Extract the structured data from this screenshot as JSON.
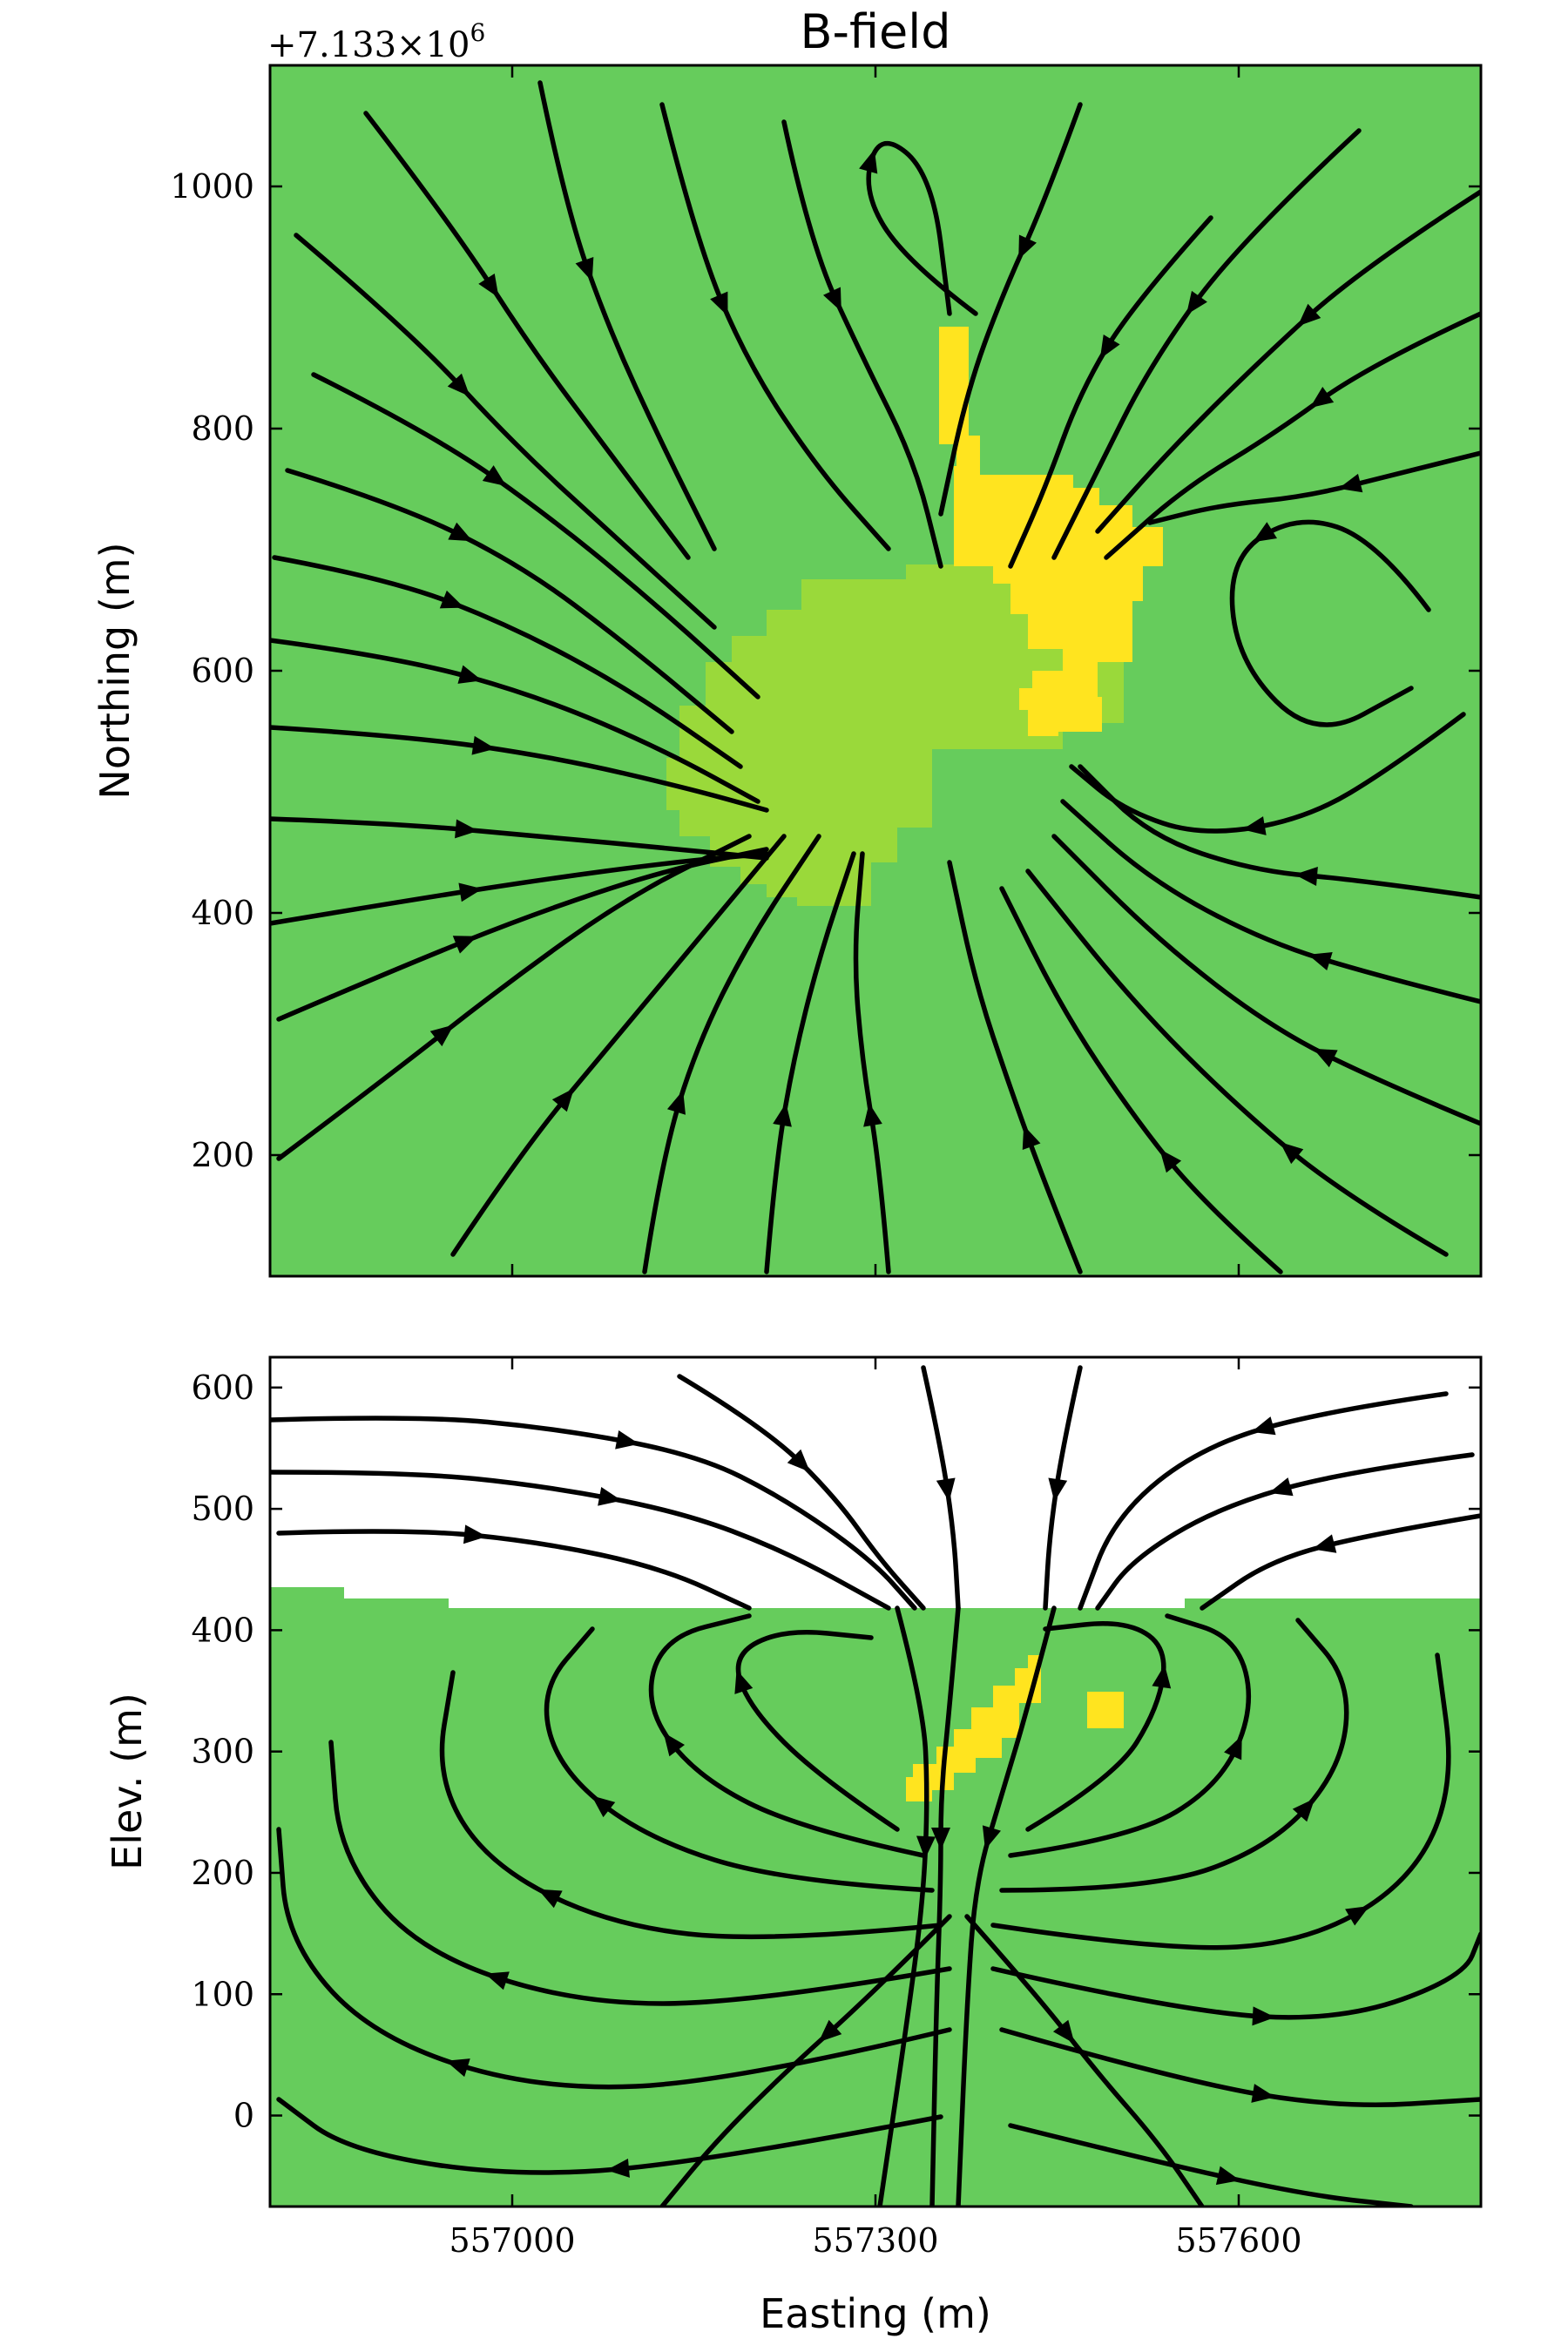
{
  "figure": {
    "title": "B-field",
    "offset_text": "+7.133×10",
    "offset_exponent": "6",
    "colors": {
      "background_model": "#66cc5c",
      "mid_anomaly": "#9ad93a",
      "high_anomaly": "#ffe41f",
      "air": "#ffffff",
      "streamlines": "#000000"
    }
  },
  "chart_data": [
    {
      "type": "streamplot",
      "view": "plan",
      "title": "B-field",
      "xlabel": "",
      "ylabel": "Northing (m)",
      "xlim": [
        556800,
        557800
      ],
      "ylim": [
        100,
        1100
      ],
      "y_offset": "+7.133×10^6",
      "yticks": [
        200,
        400,
        600,
        800,
        1000
      ],
      "ytick_labels": [
        "200",
        "400",
        "600",
        "800",
        "1000"
      ],
      "xticks": [
        557000,
        557300,
        557600
      ],
      "grid": false,
      "background": "conductivity model",
      "anomalies": [
        {
          "level": "mid",
          "color": "#9ad93a",
          "easting_range": [
            557130,
            557490
          ],
          "northing_range": [
            410,
            670
          ]
        },
        {
          "level": "high",
          "color": "#ffe41f",
          "easting_range": [
            557350,
            557530
          ],
          "northing_range": [
            550,
            880
          ]
        }
      ],
      "field_pattern": "dipole-like field converging toward the central anomaly around (557350, 600)"
    },
    {
      "type": "streamplot",
      "view": "section",
      "xlabel": "Easting (m)",
      "ylabel": "Elev. (m)",
      "xlim": [
        556800,
        557800
      ],
      "ylim": [
        -75,
        625
      ],
      "yticks": [
        0,
        100,
        200,
        300,
        400,
        500,
        600
      ],
      "ytick_labels": [
        "0",
        "100",
        "200",
        "300",
        "400",
        "500",
        "600"
      ],
      "xticks": [
        557000,
        557300,
        557600
      ],
      "xtick_labels": [
        "557000",
        "557300",
        "557600"
      ],
      "grid": false,
      "topography_elevation": 420,
      "above_topography": "air (white)",
      "anomalies": [
        {
          "level": "high",
          "color": "#ffe41f",
          "easting_range": [
            557320,
            557430
          ],
          "elevation_range": [
            265,
            385
          ]
        },
        {
          "level": "high",
          "color": "#ffe41f",
          "easting_range": [
            557470,
            557500
          ],
          "elevation_range": [
            320,
            350
          ]
        }
      ],
      "field_pattern": "two opposing vortex cells either side of a downward-directed central field near easting 557360"
    }
  ]
}
